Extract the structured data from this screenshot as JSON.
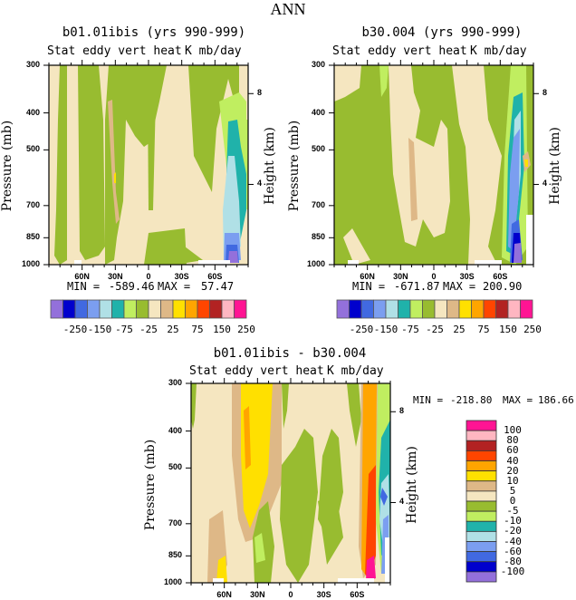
{
  "title": "ANN",
  "chart_data": [
    {
      "type": "heatmap",
      "subtype": "filled-contour",
      "title": "b01.01ibis (yrs 990-999)",
      "subtitle_left": "Stat eddy vert heat",
      "subtitle_right": "K mb/day",
      "xlabel": "",
      "ylabel": "Pressure (mb)",
      "ylabel_right": "Height (km)",
      "x_ticks": [
        "60N",
        "30N",
        "0",
        "30S",
        "60S"
      ],
      "x_range": [
        "90N",
        "90S"
      ],
      "y_ticks": [
        300,
        400,
        500,
        700,
        850,
        1000
      ],
      "y_range": [
        1000,
        300
      ],
      "y_right_ticks": [
        8,
        4
      ],
      "min_label": "MIN =",
      "min": "-589.46",
      "max_label": "MAX =",
      "max": "57.47",
      "levels": [
        -250,
        -150,
        -75,
        -25,
        25,
        75,
        150,
        250
      ],
      "level_labels": [
        "-250",
        "-150",
        "-75",
        "-25",
        "25",
        "75",
        "150",
        "250"
      ],
      "colors": [
        "#9370DB",
        "#0000CD",
        "#4169E1",
        "#7B9EF0",
        "#B0E0E6",
        "#20B2AA",
        "#C0EE60",
        "#98BC30",
        "#F5E6C0",
        "#DEB887",
        "#FFE000",
        "#FFA500",
        "#FF4500",
        "#B22222",
        "#FFB6C1",
        "#FF1493"
      ]
    },
    {
      "type": "heatmap",
      "subtype": "filled-contour",
      "title": "b30.004 (yrs 990-999)",
      "subtitle_left": "Stat eddy vert heat",
      "subtitle_right": "K mb/day",
      "ylabel": "Pressure (mb)",
      "ylabel_right": "Height (km)",
      "x_ticks": [
        "60N",
        "30N",
        "0",
        "30S",
        "60S"
      ],
      "y_ticks": [
        300,
        400,
        500,
        700,
        850,
        1000
      ],
      "y_right_ticks": [
        8,
        4
      ],
      "min_label": "MIN =",
      "min": "-671.87",
      "max_label": "MAX =",
      "max": "200.90",
      "level_labels": [
        "-250",
        "-150",
        "-75",
        "-25",
        "25",
        "75",
        "150",
        "250"
      ]
    },
    {
      "type": "heatmap",
      "subtype": "filled-contour",
      "title": "b01.01ibis - b30.004",
      "subtitle_left": "Stat eddy vert heat",
      "subtitle_right": "K mb/day",
      "ylabel": "Pressure (mb)",
      "ylabel_right": "Height (km)",
      "x_ticks": [
        "60N",
        "30N",
        "0",
        "30S",
        "60S"
      ],
      "y_ticks": [
        300,
        400,
        500,
        700,
        850,
        1000
      ],
      "y_right_ticks": [
        8,
        4
      ],
      "min_label": "MIN =",
      "min": "-218.80",
      "max_label": "MAX =",
      "max": "186.66",
      "levels": [
        -100,
        -80,
        -60,
        -40,
        -20,
        -10,
        -5,
        0,
        5,
        10,
        20,
        40,
        60,
        80,
        100
      ],
      "level_labels": [
        "100",
        "80",
        "60",
        "40",
        "20",
        "10",
        "5",
        "0",
        "-5",
        "-10",
        "-20",
        "-40",
        "-60",
        "-80",
        "-100"
      ],
      "colors_top_to_bottom": [
        "#FF1493",
        "#FFB6C1",
        "#B22222",
        "#FF4500",
        "#FFA500",
        "#FFE000",
        "#DEB887",
        "#F5E6C0",
        "#98BC30",
        "#C0EE60",
        "#20B2AA",
        "#B0E0E6",
        "#7B9EF0",
        "#4169E1",
        "#0000CD",
        "#9370DB"
      ]
    }
  ]
}
